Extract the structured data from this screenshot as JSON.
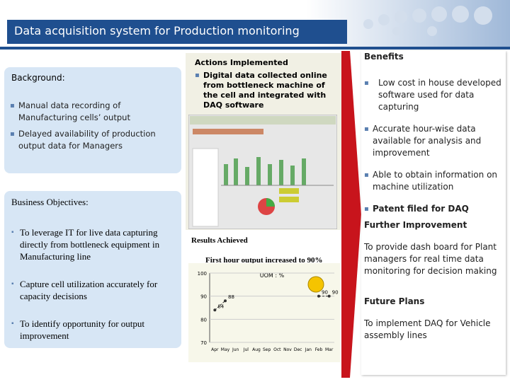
{
  "header": {
    "title": "Data acquisition system for Production monitoring"
  },
  "background": {
    "heading": "Background:",
    "bullets": [
      "Manual data recording of Manufacturing cells’ output",
      "Delayed availability of production output data for Managers"
    ]
  },
  "objectives": {
    "heading": "Business Objectives:",
    "bullets": [
      "To leverage IT for live data capturing directly from bottleneck equipment in Manufacturing line",
      "Capture cell utilization accurately for capacity decisions",
      "To identify opportunity for output improvement"
    ]
  },
  "actions": {
    "heading": "Actions Implemented",
    "bullets": [
      "Digital data collected online from bottleneck machine of the cell and integrated with DAQ software"
    ]
  },
  "results": {
    "heading": "Results Achieved",
    "caption": "First hour output increased to 90%"
  },
  "chart_data": {
    "type": "line",
    "title": "UOM : %",
    "categories": [
      "Apr",
      "May",
      "Jun",
      "Jul",
      "Aug",
      "Sep",
      "Oct",
      "Nov",
      "Dec",
      "Jan",
      "Feb",
      "Mar"
    ],
    "values": [
      84,
      88,
      null,
      null,
      null,
      null,
      null,
      null,
      null,
      null,
      90,
      90
    ],
    "color": "#333333",
    "ylim": [
      70,
      100
    ],
    "yticks": [
      70,
      80,
      90,
      100
    ]
  },
  "benefits": {
    "heading": "Benefits",
    "bullets": [
      "Low cost in house developed software used for data capturing",
      "Accurate hour-wise data available for analysis and improvement",
      "Able to obtain information on machine utilization",
      "Patent filed for DAQ"
    ]
  },
  "further": {
    "heading": "Further Improvement",
    "text": "To provide dash board for Plant managers for real time data monitoring for decision making"
  },
  "future": {
    "heading": "Future Plans",
    "text": "To implement DAQ for Vehicle assembly lines"
  }
}
